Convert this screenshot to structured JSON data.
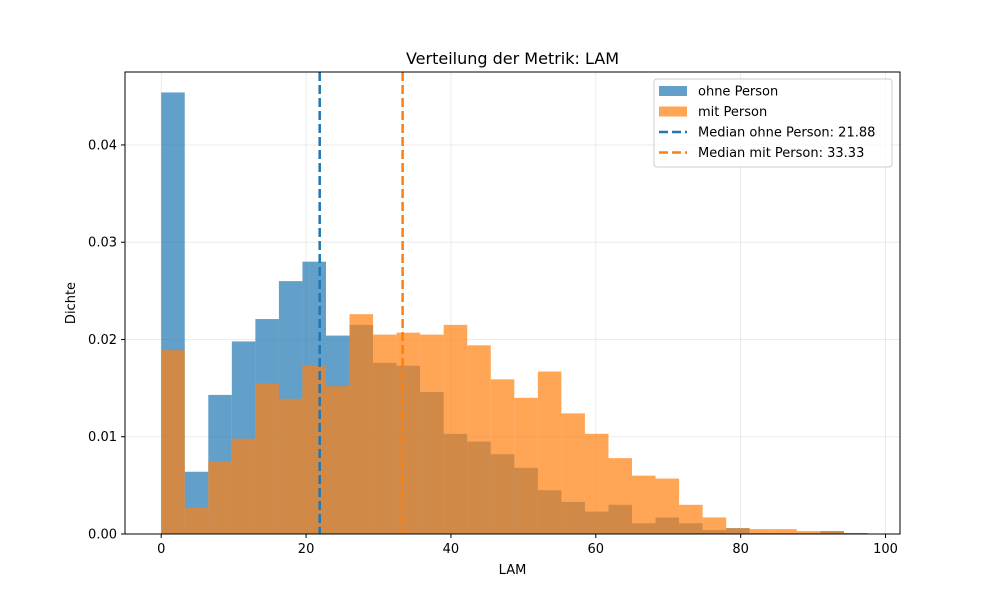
{
  "chart_data": {
    "type": "histogram",
    "title": "Verteilung der Metrik: LAM",
    "xlabel": "LAM",
    "ylabel": "Dichte",
    "xlim": [
      -5,
      102
    ],
    "ylim": [
      0,
      0.0475
    ],
    "x_ticks": [
      0,
      20,
      40,
      60,
      80,
      100
    ],
    "y_ticks": [
      0.0,
      0.01,
      0.02,
      0.03,
      0.04
    ],
    "x_tick_labels": [
      "0",
      "20",
      "40",
      "60",
      "80",
      "100"
    ],
    "y_tick_labels": [
      "0.00",
      "0.01",
      "0.02",
      "0.03",
      "0.04"
    ],
    "grid": true,
    "legend_position": "top-right",
    "series": [
      {
        "name": "ohne Person",
        "color": "#1f77b4",
        "alpha": 0.7,
        "bins": [
          [
            0.0,
            3.25,
            0.0454
          ],
          [
            3.25,
            6.5,
            0.0064
          ],
          [
            6.5,
            9.75,
            0.0143
          ],
          [
            9.75,
            13.0,
            0.0198
          ],
          [
            13.0,
            16.25,
            0.0221
          ],
          [
            16.25,
            19.5,
            0.026
          ],
          [
            19.5,
            22.75,
            0.028
          ],
          [
            22.75,
            26.0,
            0.0204
          ],
          [
            26.0,
            29.25,
            0.0215
          ],
          [
            29.25,
            32.5,
            0.0176
          ],
          [
            32.5,
            35.75,
            0.0173
          ],
          [
            35.75,
            39.0,
            0.0146
          ],
          [
            39.0,
            42.25,
            0.0103
          ],
          [
            42.25,
            45.5,
            0.0095
          ],
          [
            45.5,
            48.75,
            0.0082
          ],
          [
            48.75,
            52.0,
            0.0068
          ],
          [
            52.0,
            55.25,
            0.0045
          ],
          [
            55.25,
            58.5,
            0.0033
          ],
          [
            58.5,
            61.75,
            0.0023
          ],
          [
            61.75,
            65.0,
            0.003
          ],
          [
            65.0,
            68.25,
            0.0011
          ],
          [
            68.25,
            71.5,
            0.0017
          ],
          [
            71.5,
            74.75,
            0.0011
          ],
          [
            74.75,
            78.0,
            0.0004
          ],
          [
            78.0,
            81.25,
            0.0006
          ],
          [
            81.25,
            84.5,
            0.0001
          ],
          [
            84.5,
            87.75,
            0.0001
          ],
          [
            87.75,
            91.0,
            0.0001
          ],
          [
            91.0,
            94.25,
            0.0003
          ],
          [
            94.25,
            97.5,
            0.0001
          ]
        ]
      },
      {
        "name": "mit Person",
        "color": "#ff7f0e",
        "alpha": 0.7,
        "bins": [
          [
            0.0,
            3.25,
            0.0189
          ],
          [
            3.25,
            6.5,
            0.0027
          ],
          [
            6.5,
            9.75,
            0.0075
          ],
          [
            9.75,
            13.0,
            0.0098
          ],
          [
            13.0,
            16.25,
            0.0155
          ],
          [
            16.25,
            19.5,
            0.0139
          ],
          [
            19.5,
            22.75,
            0.0173
          ],
          [
            22.75,
            26.0,
            0.0152
          ],
          [
            26.0,
            29.25,
            0.0226
          ],
          [
            29.25,
            32.5,
            0.0205
          ],
          [
            32.5,
            35.75,
            0.0207
          ],
          [
            35.75,
            39.0,
            0.0205
          ],
          [
            39.0,
            42.25,
            0.0215
          ],
          [
            42.25,
            45.5,
            0.0194
          ],
          [
            45.5,
            48.75,
            0.0159
          ],
          [
            48.75,
            52.0,
            0.014
          ],
          [
            52.0,
            55.25,
            0.0167
          ],
          [
            55.25,
            58.5,
            0.0124
          ],
          [
            58.5,
            61.75,
            0.0103
          ],
          [
            61.75,
            65.0,
            0.0078
          ],
          [
            65.0,
            68.25,
            0.006
          ],
          [
            68.25,
            71.5,
            0.0057
          ],
          [
            71.5,
            74.75,
            0.003
          ],
          [
            74.75,
            78.0,
            0.0017
          ],
          [
            78.0,
            81.25,
            0.0006
          ],
          [
            81.25,
            84.5,
            0.0005
          ],
          [
            84.5,
            87.75,
            0.0005
          ],
          [
            87.75,
            91.0,
            0.0003
          ],
          [
            91.0,
            94.25,
            0.0003
          ],
          [
            94.25,
            97.5,
            0.0001
          ]
        ]
      }
    ],
    "median_lines": [
      {
        "name": "Median ohne Person: 21.88",
        "x": 21.88,
        "color": "#1f77b4"
      },
      {
        "name": "Median mit Person: 33.33",
        "x": 33.33,
        "color": "#ff7f0e"
      }
    ]
  }
}
